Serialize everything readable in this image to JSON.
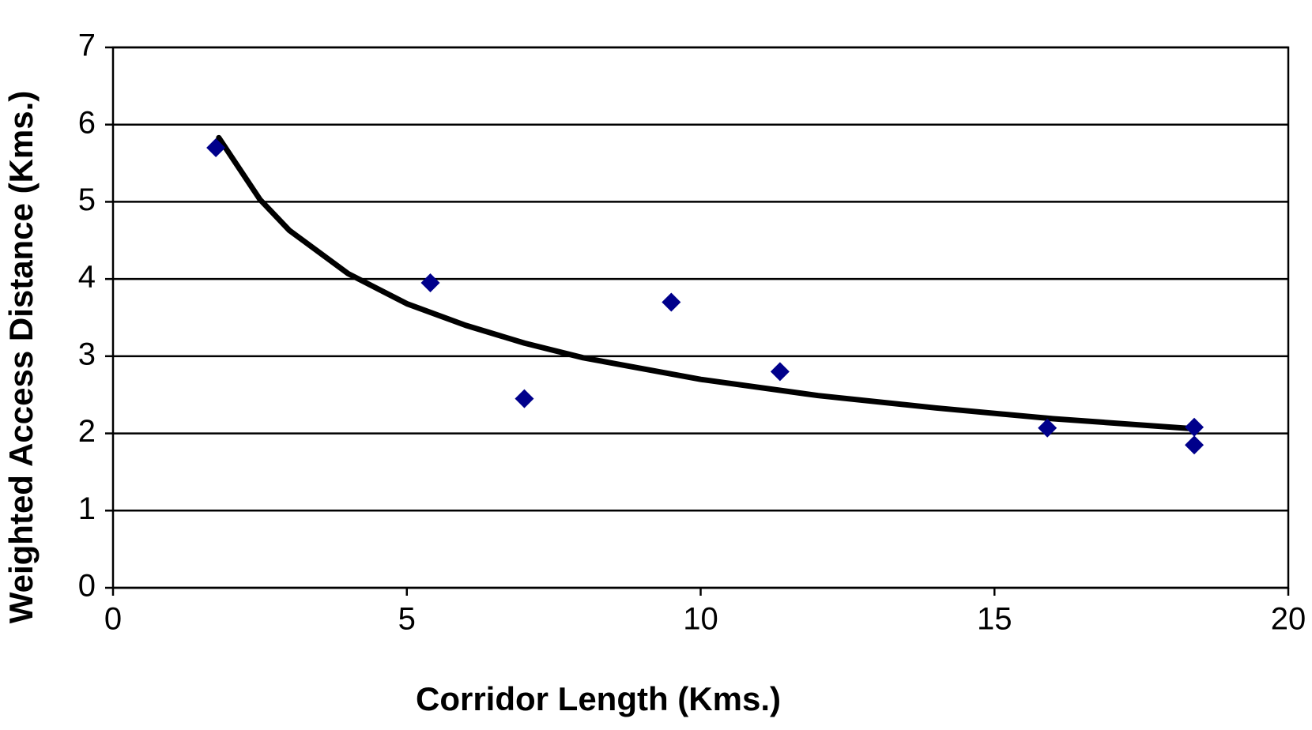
{
  "chart_data": {
    "type": "scatter",
    "x_label": "Corridor Length (Kms.)",
    "y_label": "Weighted Access Distance (Kms.)",
    "x": [
      1.75,
      5.4,
      7.0,
      9.5,
      11.35,
      15.9,
      18.4,
      18.4
    ],
    "values": [
      5.7,
      3.95,
      2.45,
      3.7,
      2.8,
      2.07,
      2.08,
      1.85
    ],
    "color": "#00008b",
    "marker": "diamond",
    "trendline": {
      "x": [
        1.8,
        2.5,
        3,
        4,
        5,
        6,
        7,
        8,
        10,
        12,
        14,
        16,
        18.4
      ],
      "values": [
        5.83,
        5.03,
        4.63,
        4.07,
        3.68,
        3.4,
        3.17,
        2.98,
        2.7,
        2.49,
        2.33,
        2.19,
        2.06
      ],
      "color": "#000000"
    },
    "xlim": [
      0,
      20
    ],
    "xticks": [
      0,
      5,
      10,
      15,
      20
    ],
    "ylim": [
      0,
      7
    ],
    "yticks": [
      0,
      1,
      2,
      3,
      4,
      5,
      6,
      7
    ],
    "grid": true
  }
}
